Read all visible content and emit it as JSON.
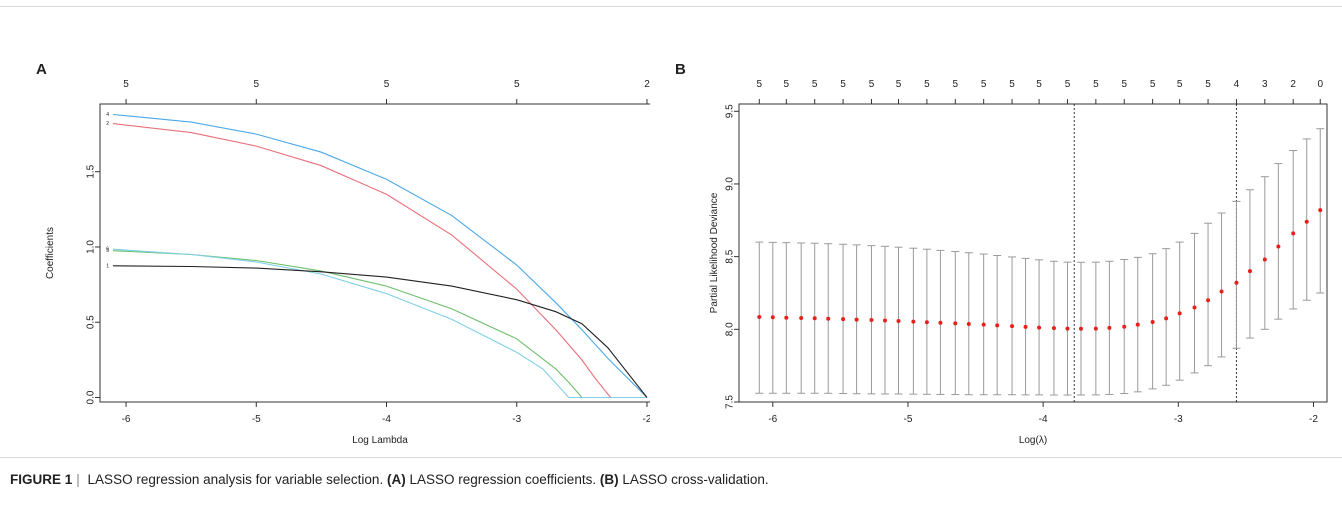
{
  "figure": {
    "caption_label": "FIGURE 1",
    "caption_separator": "|",
    "caption_text_1": "LASSO regression analysis for variable selection.",
    "caption_a_tag": "(A)",
    "caption_text_2": "LASSO regression coefficients.",
    "caption_b_tag": "(B)",
    "caption_text_3": "LASSO cross-validation."
  },
  "chart_data": [
    {
      "panel": "A",
      "type": "line",
      "xlabel": "Log Lambda",
      "ylabel": "Coefficients",
      "xlim": [
        -6.2,
        -1.9
      ],
      "ylim": [
        -0.03,
        1.95
      ],
      "xticks": [
        -6,
        -5,
        -4,
        -3,
        -2
      ],
      "yticks": [
        0.0,
        0.5,
        1.0,
        1.5
      ],
      "ytick_labels": [
        "0.0",
        "0.5",
        "1.0",
        "1.5"
      ],
      "top_axis": {
        "positions": [
          -6,
          -5,
          -4,
          -3,
          -2
        ],
        "labels": [
          "5",
          "5",
          "5",
          "5",
          "2"
        ]
      },
      "grid": false,
      "series": [
        {
          "name": "4",
          "color": "#4aa8e8",
          "x": [
            -6.1,
            -5.5,
            -5.0,
            -4.5,
            -4.0,
            -3.5,
            -3.0,
            -2.7,
            -2.5,
            -2.3,
            -2.0
          ],
          "y": [
            1.88,
            1.83,
            1.75,
            1.63,
            1.45,
            1.21,
            0.88,
            0.63,
            0.45,
            0.26,
            0.0
          ]
        },
        {
          "name": "2",
          "color": "#e8707a",
          "x": [
            -6.1,
            -5.5,
            -5.0,
            -4.5,
            -4.0,
            -3.5,
            -3.0,
            -2.7,
            -2.5,
            -2.4,
            -2.28,
            -2.0
          ],
          "y": [
            1.82,
            1.76,
            1.67,
            1.54,
            1.35,
            1.08,
            0.72,
            0.45,
            0.25,
            0.13,
            0.0,
            0.0
          ]
        },
        {
          "name": "5",
          "color": "#6cbf6c",
          "x": [
            -6.1,
            -5.5,
            -5.0,
            -4.5,
            -4.0,
            -3.5,
            -3.0,
            -2.7,
            -2.6,
            -2.5,
            -2.0
          ],
          "y": [
            0.975,
            0.95,
            0.91,
            0.84,
            0.74,
            0.59,
            0.39,
            0.19,
            0.1,
            0.0,
            0.0
          ]
        },
        {
          "name": "6",
          "color": "#7fd0e6",
          "x": [
            -6.1,
            -5.5,
            -5.0,
            -4.5,
            -4.0,
            -3.5,
            -3.0,
            -2.8,
            -2.6,
            -2.0
          ],
          "y": [
            0.985,
            0.95,
            0.9,
            0.82,
            0.69,
            0.52,
            0.3,
            0.19,
            0.0,
            0.0
          ]
        },
        {
          "name": "1",
          "color": "#222222",
          "x": [
            -6.1,
            -5.5,
            -5.0,
            -4.5,
            -4.0,
            -3.5,
            -3.0,
            -2.7,
            -2.5,
            -2.3,
            -2.0
          ],
          "y": [
            0.875,
            0.87,
            0.86,
            0.835,
            0.8,
            0.74,
            0.65,
            0.57,
            0.49,
            0.33,
            0.0
          ]
        }
      ]
    },
    {
      "panel": "B",
      "type": "scatter",
      "xlabel": "Log(λ)",
      "ylabel": "Partial Likelihood Deviance",
      "xlim": [
        -6.25,
        -1.9
      ],
      "ylim": [
        7.5,
        9.55
      ],
      "xticks": [
        -6,
        -5,
        -4,
        -3,
        -2
      ],
      "yticks": [
        7.5,
        8.0,
        8.5,
        9.0,
        9.5
      ],
      "ytick_labels": [
        "7.5",
        "8.0",
        "8.5",
        "9.0",
        "9.5"
      ],
      "grid": false,
      "point_color": "#e8201c",
      "errorbar_color": "#9a9a9a",
      "vlines": [
        -3.77,
        -2.57
      ],
      "top_axis": {
        "positions": [
          -6.1,
          -5.9,
          -5.69,
          -5.48,
          -5.27,
          -5.07,
          -4.86,
          -4.65,
          -4.44,
          -4.23,
          -4.03,
          -3.82,
          -3.61,
          -3.4,
          -3.19,
          -2.99,
          -2.78,
          -2.57,
          -2.36,
          -2.15,
          -1.95
        ],
        "labels": [
          "5",
          "5",
          "5",
          "5",
          "5",
          "5",
          "5",
          "5",
          "5",
          "5",
          "5",
          "5",
          "5",
          "5",
          "5",
          "5",
          "5",
          "4",
          "3",
          "2",
          "0"
        ]
      },
      "x": [
        -6.1,
        -6.0,
        -5.9,
        -5.79,
        -5.69,
        -5.59,
        -5.48,
        -5.38,
        -5.27,
        -5.17,
        -5.07,
        -4.96,
        -4.86,
        -4.76,
        -4.65,
        -4.55,
        -4.44,
        -4.34,
        -4.23,
        -4.13,
        -4.03,
        -3.92,
        -3.82,
        -3.72,
        -3.61,
        -3.51,
        -3.4,
        -3.3,
        -3.19,
        -3.09,
        -2.99,
        -2.88,
        -2.78,
        -2.68,
        -2.57,
        -2.47,
        -2.36,
        -2.26,
        -2.15,
        -2.05,
        -1.95
      ],
      "y": [
        8.085,
        8.083,
        8.08,
        8.078,
        8.076,
        8.073,
        8.07,
        8.067,
        8.064,
        8.061,
        8.057,
        8.053,
        8.049,
        8.045,
        8.041,
        8.037,
        8.032,
        8.027,
        8.022,
        8.017,
        8.012,
        8.008,
        8.005,
        8.004,
        8.005,
        8.01,
        8.018,
        8.032,
        8.05,
        8.075,
        8.11,
        8.15,
        8.2,
        8.26,
        8.32,
        8.4,
        8.48,
        8.57,
        8.66,
        8.74,
        8.82
      ],
      "lower": [
        7.56,
        7.56,
        7.56,
        7.56,
        7.56,
        7.56,
        7.558,
        7.557,
        7.556,
        7.555,
        7.555,
        7.554,
        7.553,
        7.552,
        7.551,
        7.55,
        7.55,
        7.55,
        7.55,
        7.549,
        7.549,
        7.548,
        7.548,
        7.548,
        7.549,
        7.552,
        7.558,
        7.57,
        7.59,
        7.615,
        7.65,
        7.7,
        7.75,
        7.81,
        7.87,
        7.94,
        8.0,
        8.07,
        8.14,
        8.2,
        8.25
      ],
      "upper": [
        8.6,
        8.598,
        8.596,
        8.594,
        8.592,
        8.589,
        8.585,
        8.581,
        8.576,
        8.571,
        8.565,
        8.558,
        8.551,
        8.543,
        8.535,
        8.527,
        8.518,
        8.508,
        8.498,
        8.488,
        8.478,
        8.468,
        8.462,
        8.461,
        8.462,
        8.468,
        8.48,
        8.495,
        8.52,
        8.555,
        8.6,
        8.66,
        8.73,
        8.8,
        8.88,
        8.96,
        9.05,
        9.14,
        9.23,
        9.31,
        9.38
      ]
    }
  ]
}
